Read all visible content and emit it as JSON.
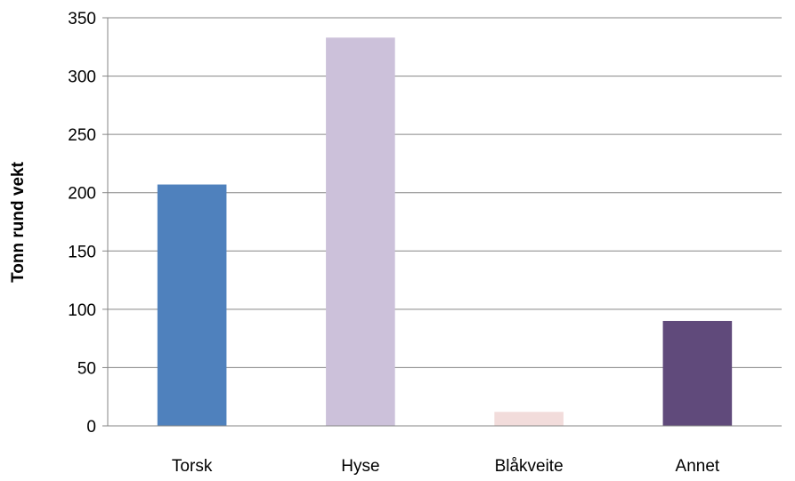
{
  "chart_data": {
    "type": "bar",
    "title": "",
    "xlabel": "",
    "ylabel": "Tonn rund vekt",
    "categories": [
      "Torsk",
      "Hyse",
      "Blåkveite",
      "Annet"
    ],
    "values": [
      207,
      333,
      12,
      90
    ],
    "colors": [
      "#4F81BD",
      "#CCC1DA",
      "#F2DCDB",
      "#604A7B"
    ],
    "ylim": [
      0,
      350
    ],
    "yticks": [
      0,
      50,
      100,
      150,
      200,
      250,
      300,
      350
    ],
    "grid": true,
    "legend": "none"
  }
}
